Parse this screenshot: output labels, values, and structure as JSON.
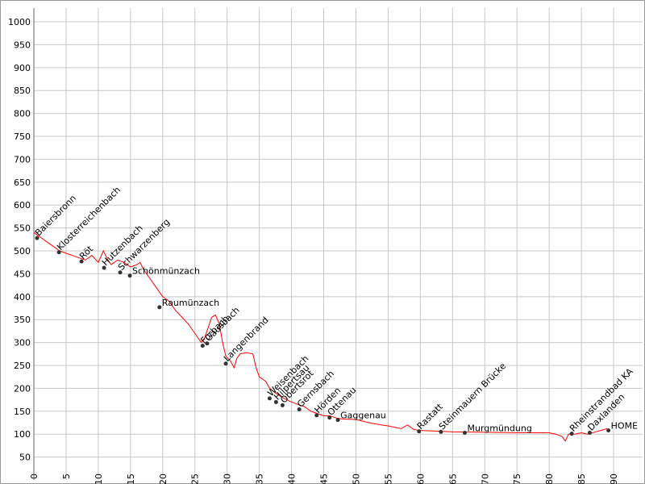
{
  "chart_data": {
    "type": "line",
    "xlim": [
      0,
      94.5
    ],
    "ylim": [
      0,
      1030
    ],
    "xticks": [
      0,
      5,
      10,
      15,
      20,
      25,
      30,
      35,
      40,
      45,
      50,
      55,
      60,
      65,
      70,
      75,
      80,
      85,
      90
    ],
    "yticks": [
      50,
      100,
      150,
      200,
      250,
      300,
      350,
      400,
      450,
      500,
      550,
      600,
      650,
      700,
      750,
      800,
      850,
      900,
      950,
      1000
    ],
    "grid": true,
    "series": [
      {
        "color": "#ff0000",
        "x": [
          0,
          1,
          2,
          3,
          4,
          5,
          6,
          7,
          8,
          9,
          10,
          10.8,
          11.5,
          12,
          13,
          14,
          15,
          16,
          16.5,
          17,
          18,
          19,
          20,
          21,
          22,
          23,
          24,
          25,
          26,
          26.5,
          27,
          27.6,
          28.2,
          28.8,
          29.3,
          29.8,
          30.5,
          31.1,
          31.5,
          32,
          33,
          34,
          34.5,
          35,
          36,
          36.6,
          37.5,
          38.6,
          40,
          41,
          42,
          43,
          44,
          45,
          46,
          47,
          48,
          50,
          52,
          54,
          55,
          57,
          58,
          59,
          60,
          62,
          65,
          70,
          75,
          80,
          81,
          82,
          82.5,
          83,
          84,
          85,
          86,
          87,
          88,
          89
        ],
        "values": [
          540,
          530,
          520,
          510,
          500,
          495,
          490,
          485,
          480,
          490,
          475,
          500,
          480,
          470,
          480,
          475,
          465,
          470,
          475,
          460,
          440,
          420,
          400,
          390,
          370,
          355,
          340,
          320,
          300,
          310,
          330,
          355,
          360,
          340,
          300,
          270,
          260,
          245,
          265,
          275,
          278,
          275,
          245,
          225,
          215,
          200,
          190,
          180,
          170,
          165,
          160,
          150,
          145,
          140,
          140,
          135,
          133,
          132,
          125,
          120,
          118,
          112,
          120,
          110,
          108,
          107,
          105,
          104,
          103,
          103,
          100,
          95,
          85,
          100,
          100,
          103,
          100,
          104,
          108,
          112
        ]
      }
    ],
    "points": {
      "color": "#333333",
      "labels": [
        "Baiersbronn",
        "Klosterreichenbach",
        "Röt",
        "Hutzenbach",
        "Schwarzenberg",
        "Schönmünzach",
        "Raumünzach",
        "Forbach",
        "Gausbach",
        "Langenbrand",
        "Weisenbach",
        "Hilpertsau",
        "Obertsrot",
        "Gernsbach",
        "Hörden",
        "Ottenau",
        "Gaggenau",
        "Rastatt",
        "Steinmauern Brücke",
        "Murgmündung",
        "Rheinstrandbad KA",
        "Daxlanden",
        "HOME"
      ],
      "x": [
        0.5,
        3.9,
        7.4,
        10.9,
        13.4,
        14.9,
        19.5,
        26.2,
        26.9,
        29.8,
        36.6,
        37.6,
        38.6,
        41.2,
        43.9,
        45.9,
        47.2,
        59.8,
        63.2,
        66.9,
        83.5,
        86.3,
        89.2
      ],
      "y": [
        528,
        497,
        477,
        463,
        453,
        446,
        377,
        293,
        298,
        254,
        178,
        170,
        163,
        154,
        141,
        136,
        131,
        106,
        105,
        103,
        101,
        103,
        108
      ]
    }
  }
}
